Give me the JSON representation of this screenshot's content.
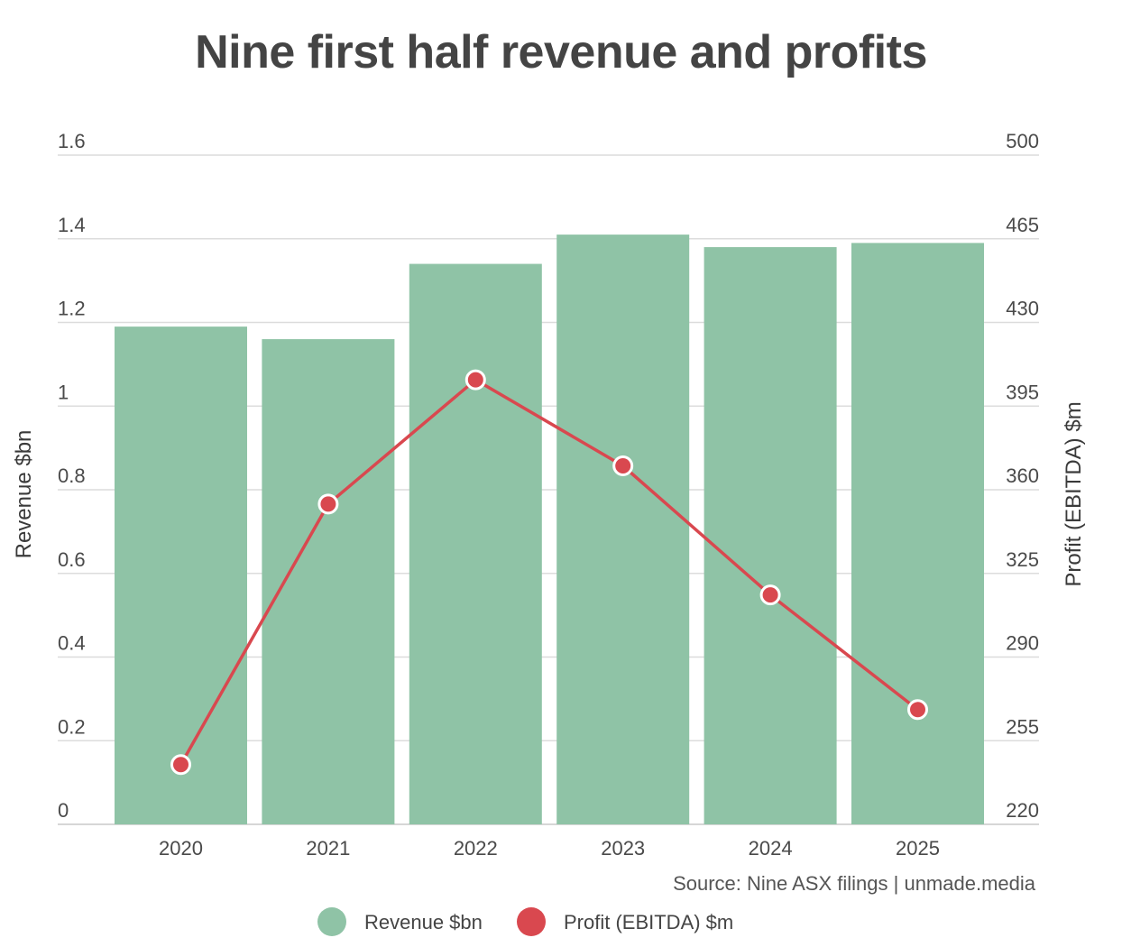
{
  "chart_data": {
    "type": "bar",
    "title": "Nine first half revenue and profits",
    "categories": [
      "2020",
      "2021",
      "2022",
      "2023",
      "2024",
      "2025"
    ],
    "series": [
      {
        "name": "Revenue $bn",
        "type": "bar",
        "axis": "left",
        "color": "#8fc3a6",
        "values": [
          1.19,
          1.16,
          1.34,
          1.41,
          1.38,
          1.39
        ]
      },
      {
        "name": "Profit (EBITDA) $m",
        "type": "line",
        "axis": "right",
        "color": "#d9484f",
        "values": [
          245,
          354,
          406,
          370,
          316,
          268
        ]
      }
    ],
    "ylabel": "Revenue $bn",
    "y2label": "Profit (EBITDA) $m",
    "ylim": [
      0,
      1.6
    ],
    "y2lim": [
      220,
      500
    ],
    "yticks": [
      "0",
      "0.2",
      "0.4",
      "0.6",
      "0.8",
      "1",
      "1.2",
      "1.4",
      "1.6"
    ],
    "y2ticks": [
      "220",
      "255",
      "290",
      "325",
      "360",
      "395",
      "430",
      "465",
      "500"
    ],
    "grid": true,
    "legend_position": "bottom",
    "source": "Source: Nine ASX filings | unmade.media"
  }
}
